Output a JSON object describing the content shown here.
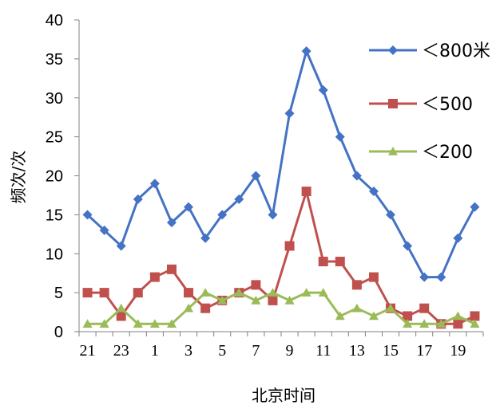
{
  "chart_data": {
    "type": "line",
    "xlabel": "北京时间",
    "ylabel": "频次/次",
    "ylim": [
      0,
      40
    ],
    "yticks": [
      "0",
      "5",
      "10",
      "15",
      "20",
      "25",
      "30",
      "35",
      "40"
    ],
    "x_tick_labels": [
      "21",
      "23",
      "1",
      "3",
      "5",
      "7",
      "9",
      "11",
      "13",
      "15",
      "17",
      "19"
    ],
    "x": [
      "21",
      "22",
      "23",
      "0",
      "1",
      "2",
      "3",
      "4",
      "5",
      "6",
      "7",
      "8",
      "9",
      "10",
      "11",
      "12",
      "13",
      "14",
      "15",
      "16",
      "17",
      "18",
      "19",
      "20"
    ],
    "grid": false,
    "legend_position": "right",
    "series": [
      {
        "name": "＜800米",
        "color": "#4472C4",
        "marker": "diamond",
        "values": [
          15,
          13,
          11,
          17,
          19,
          14,
          16,
          12,
          15,
          17,
          20,
          15,
          28,
          36,
          31,
          25,
          20,
          18,
          15,
          11,
          7,
          7,
          12,
          16
        ]
      },
      {
        "name": "＜500",
        "color": "#C0504D",
        "marker": "square",
        "values": [
          5,
          5,
          2,
          5,
          7,
          8,
          5,
          3,
          4,
          5,
          6,
          4,
          11,
          18,
          9,
          9,
          6,
          7,
          3,
          2,
          3,
          1,
          1,
          2
        ]
      },
      {
        "name": "＜200",
        "color": "#9BBB59",
        "marker": "triangle",
        "values": [
          1,
          1,
          3,
          1,
          1,
          1,
          3,
          5,
          4,
          5,
          4,
          5,
          4,
          5,
          5,
          2,
          3,
          2,
          3,
          1,
          1,
          1,
          2,
          1
        ]
      }
    ]
  }
}
